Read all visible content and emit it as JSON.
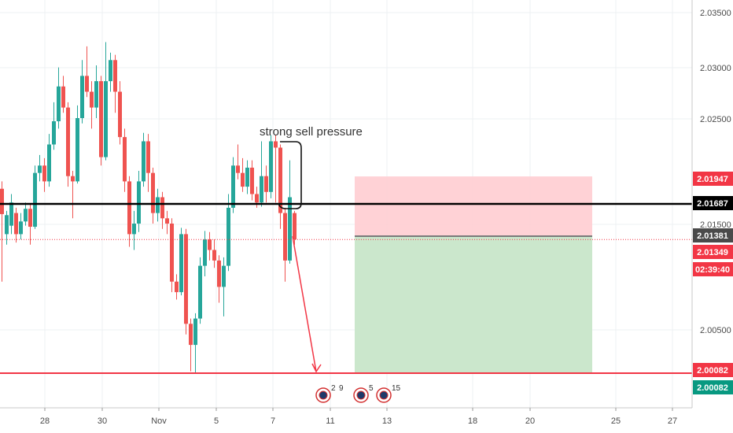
{
  "chart_data": {
    "type": "candlestick",
    "y_axis": {
      "ticks": [
        "2.03500",
        "2.03000",
        "2.02500",
        "2.01500",
        "2.00500"
      ],
      "range": [
        1.9982,
        2.0365
      ]
    },
    "x_axis": {
      "ticks": [
        "28",
        "30",
        "Nov",
        "5",
        "7",
        "11",
        "13",
        "18",
        "20",
        "25",
        "27"
      ]
    },
    "price_tags": [
      {
        "value": "2.01947",
        "bg": "#f23645",
        "fg": "#ffffff"
      },
      {
        "value": "2.01687",
        "bg": "#000000",
        "fg": "#ffffff"
      },
      {
        "value": "2.01381",
        "bg": "#4a4a4a",
        "fg": "#ffffff"
      },
      {
        "value": "2.01349",
        "bg": "#f23645",
        "fg": "#ffffff"
      },
      {
        "value": "02:39:40",
        "bg": "#f23645",
        "fg": "#ffffff"
      },
      {
        "value": "2.00082",
        "bg": "#f23645",
        "fg": "#ffffff"
      },
      {
        "value": "2.00082",
        "bg": "#089981",
        "fg": "#ffffff"
      }
    ],
    "levels": {
      "resistance": 2.01687,
      "target": 2.00082,
      "current": 2.01349,
      "position_entry": 2.01381,
      "position_stop": 2.01947,
      "position_take": 2.00082
    },
    "annotation": "strong sell pressure",
    "event_markers": [
      {
        "label": "2",
        "extra": "9"
      },
      {
        "label": "",
        "extra": "5"
      },
      {
        "label": "",
        "extra": "15"
      }
    ],
    "colors": {
      "up": "#26a69a",
      "down": "#ef5350",
      "resistance": "#000000",
      "target": "#f23645",
      "stop_zone": "#ffcdd2",
      "profit_zone": "#c8e6c9"
    }
  }
}
